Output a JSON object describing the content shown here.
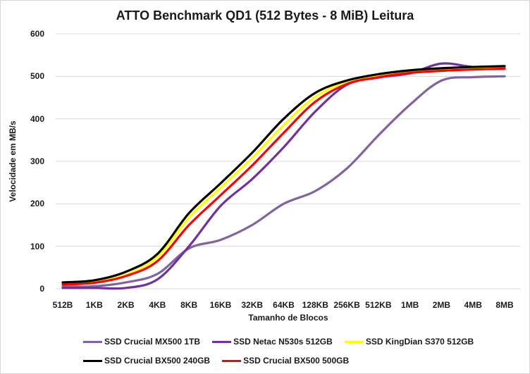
{
  "window": {
    "background": "#ffffff",
    "border_color": "#d6d6d6",
    "text_color": "#1a1a1a"
  },
  "chart_data": {
    "type": "line",
    "title": "ATTO Benchmark QD1 (512 Bytes - 8 MiB) Leitura",
    "xlabel": "Tamanho de Blocos",
    "ylabel": "Velocidade em MB/s",
    "ylim": [
      0,
      600
    ],
    "yticks": [
      0,
      100,
      200,
      300,
      400,
      500,
      600
    ],
    "grid": true,
    "gridline_color": "#d9d9d9",
    "legend_position": "bottom",
    "categories": [
      "512B",
      "1KB",
      "2KB",
      "4KB",
      "8KB",
      "16KB",
      "32KB",
      "64KB",
      "128KB",
      "256KB",
      "512KB",
      "1MB",
      "2MB",
      "4MB",
      "8MB"
    ],
    "series": [
      {
        "name": "SSD Crucial MX500 1TB",
        "color": "#8064A2",
        "values": [
          5,
          6,
          15,
          35,
          95,
          115,
          150,
          200,
          230,
          283,
          361,
          433,
          490,
          498,
          500
        ]
      },
      {
        "name": "SSD Netac N530s 512GB",
        "color": "#7030A0",
        "values": [
          2,
          2,
          2,
          22,
          100,
          195,
          258,
          333,
          417,
          480,
          497,
          507,
          530,
          522,
          521
        ]
      },
      {
        "name": "SSD KingDian S370 512GB",
        "color": "#FFFF00",
        "values": [
          12,
          17,
          33,
          75,
          168,
          238,
          308,
          385,
          452,
          486,
          500,
          510,
          515,
          518,
          519
        ]
      },
      {
        "name": "SSD Crucial BX500 240GB",
        "color": "#000000",
        "values": [
          15,
          20,
          40,
          82,
          178,
          248,
          320,
          400,
          461,
          490,
          505,
          514,
          519,
          522,
          524
        ]
      },
      {
        "name": "SSD Crucial BX500 500GB",
        "color": "#FF0000",
        "values": [
          10,
          14,
          30,
          65,
          150,
          220,
          290,
          367,
          440,
          482,
          498,
          508,
          513,
          516,
          518
        ]
      }
    ],
    "legend_rows": [
      [
        0,
        1,
        2
      ],
      [
        3,
        4
      ]
    ]
  }
}
